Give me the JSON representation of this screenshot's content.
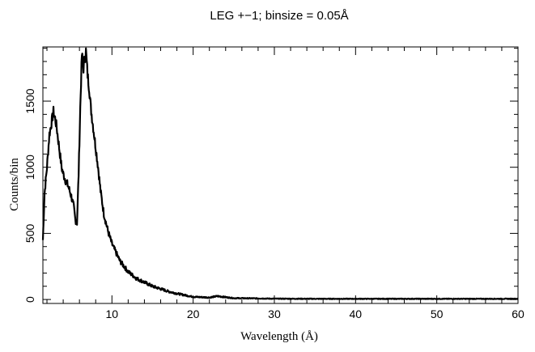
{
  "chart_data": {
    "type": "line",
    "title": "LEG +−1; binsize = 0.05Å",
    "xlabel": "Wavelength (Å)",
    "ylabel": "Counts/bin",
    "xlim": [
      1.5,
      60
    ],
    "ylim": [
      -30,
      1910
    ],
    "x_ticks": [
      10,
      20,
      30,
      40,
      50,
      60
    ],
    "x_tick_labels": [
      "10",
      "20",
      "30",
      "40",
      "50",
      "60"
    ],
    "y_ticks": [
      0,
      500,
      1000,
      1500
    ],
    "y_tick_labels": [
      "0",
      "500",
      "1000",
      "1500"
    ],
    "grid": false,
    "line_color": "#000000",
    "series": [
      {
        "x": [
          1.5,
          1.7,
          2.0,
          2.3,
          2.6,
          2.8,
          3.0,
          3.2,
          3.5,
          3.8,
          4.0,
          4.3,
          4.6,
          5.0,
          5.3,
          5.5,
          5.7,
          5.9,
          6.1,
          6.3,
          6.5,
          6.6,
          6.8,
          7.0,
          7.2,
          7.4,
          7.6,
          7.8,
          8.0,
          8.3,
          8.6,
          9.0,
          9.5,
          10,
          11,
          12,
          13,
          14,
          15,
          16,
          17,
          18,
          20,
          22,
          23,
          25,
          28,
          30,
          35,
          40,
          45,
          50,
          55,
          60
        ],
        "y": [
          450,
          800,
          1000,
          1250,
          1350,
          1420,
          1370,
          1300,
          1150,
          1000,
          950,
          900,
          860,
          780,
          700,
          600,
          580,
          950,
          1450,
          1850,
          1750,
          1800,
          1880,
          1700,
          1600,
          1450,
          1350,
          1250,
          1150,
          1000,
          820,
          650,
          520,
          420,
          290,
          210,
          160,
          130,
          100,
          80,
          60,
          45,
          20,
          15,
          25,
          10,
          8,
          6,
          5,
          5,
          5,
          5,
          5,
          5
        ]
      }
    ]
  }
}
